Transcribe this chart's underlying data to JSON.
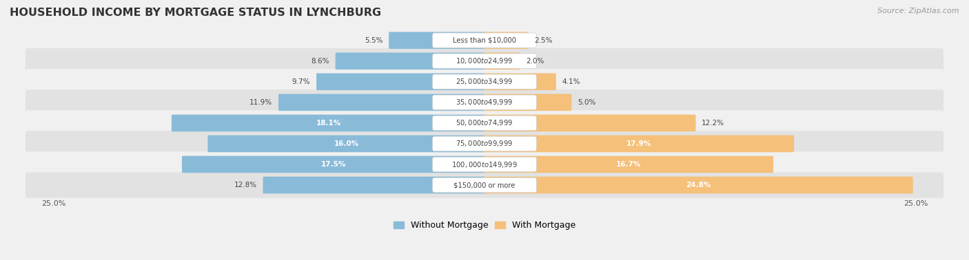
{
  "title": "HOUSEHOLD INCOME BY MORTGAGE STATUS IN LYNCHBURG",
  "source": "Source: ZipAtlas.com",
  "categories": [
    "Less than $10,000",
    "$10,000 to $24,999",
    "$25,000 to $34,999",
    "$35,000 to $49,999",
    "$50,000 to $74,999",
    "$75,000 to $99,999",
    "$100,000 to $149,999",
    "$150,000 or more"
  ],
  "without_mortgage": [
    5.5,
    8.6,
    9.7,
    11.9,
    18.1,
    16.0,
    17.5,
    12.8
  ],
  "with_mortgage": [
    2.5,
    2.0,
    4.1,
    5.0,
    12.2,
    17.9,
    16.7,
    24.8
  ],
  "color_without": "#89BBD9",
  "color_with": "#F4C07A",
  "row_bg_light": "#F0F0F0",
  "row_bg_dark": "#E2E2E2",
  "max_val": 25.0,
  "label_threshold": 14.0
}
